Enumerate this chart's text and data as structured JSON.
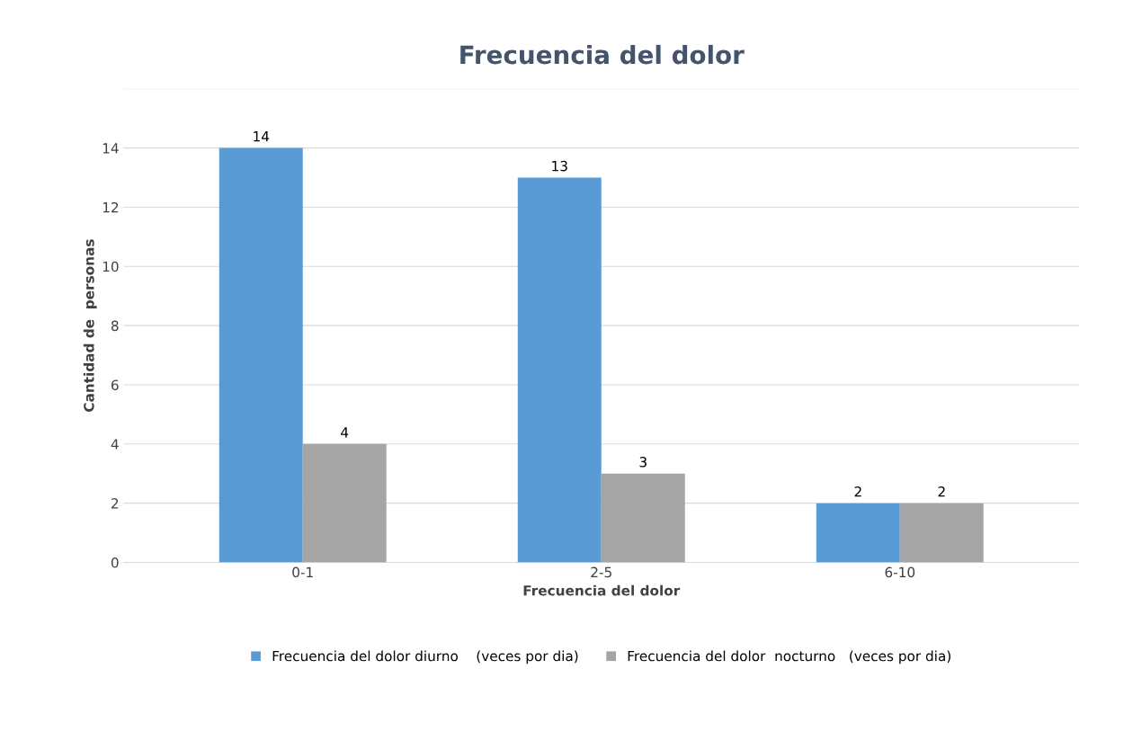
{
  "chart_data": {
    "type": "bar",
    "title": "Frecuencia del dolor",
    "xlabel": "Frecuencia del dolor",
    "ylabel": "Cantidad de  personas",
    "categories": [
      "0-1",
      "2-5",
      "6-10"
    ],
    "series": [
      {
        "name": "Frecuencia del dolor diurno    (veces por dia)",
        "color": "#5b9bd5",
        "values": [
          14,
          13,
          2
        ]
      },
      {
        "name": "Frecuencia del dolor  nocturno   (veces por dia)",
        "color": "#a5a5a5",
        "values": [
          4,
          3,
          2
        ]
      }
    ],
    "ylim": [
      0,
      16
    ],
    "yticks": [
      0,
      2,
      4,
      6,
      8,
      10,
      12,
      14,
      {
        "value": 16,
        "label": null
      }
    ],
    "grid": "y",
    "legend": "bottom",
    "data_labels": true
  }
}
